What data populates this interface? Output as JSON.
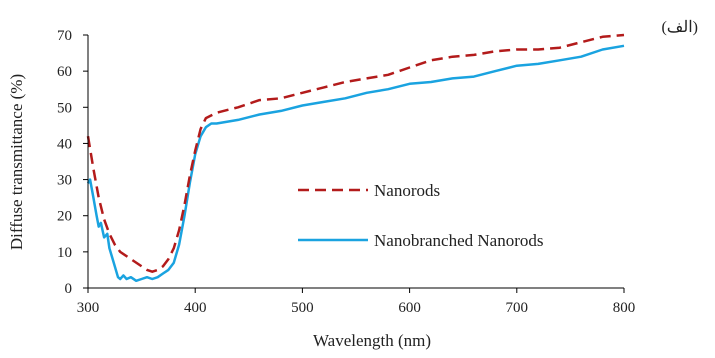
{
  "panel_label": "(الف)",
  "colors": {
    "nanorods": "#b31b1b",
    "nanobranched": "#1aa3e0",
    "axis": "#000000"
  },
  "chart_data": {
    "type": "line",
    "xlabel": "Wavelength (nm)",
    "ylabel": "Diffuse transmittance (%)",
    "xlim": [
      300,
      800
    ],
    "ylim": [
      0,
      70
    ],
    "xticks": [
      300,
      400,
      500,
      600,
      700,
      800
    ],
    "yticks": [
      0,
      10,
      20,
      30,
      40,
      50,
      60,
      70
    ],
    "grid": false,
    "legend_position": "center-right",
    "series": [
      {
        "name": "Nanorods",
        "style": "dashed",
        "x": [
          300,
          305,
          310,
          315,
          320,
          325,
          330,
          340,
          350,
          355,
          360,
          365,
          370,
          375,
          380,
          385,
          390,
          395,
          400,
          405,
          410,
          420,
          440,
          460,
          480,
          500,
          520,
          540,
          560,
          580,
          600,
          620,
          640,
          660,
          680,
          700,
          720,
          740,
          760,
          780,
          800
        ],
        "y": [
          42,
          33,
          25,
          19,
          15,
          12,
          10,
          8,
          6,
          5,
          4.5,
          5,
          6,
          8,
          11,
          16,
          23,
          31,
          38,
          44,
          47,
          48.5,
          50,
          52,
          52.5,
          54,
          55.5,
          57,
          58,
          59,
          61,
          63,
          64,
          64.5,
          65.5,
          66,
          66,
          66.5,
          68,
          69.5,
          70
        ]
      },
      {
        "name": "Nanobranched Nanorods",
        "style": "solid",
        "x": [
          300,
          302,
          305,
          308,
          310,
          312,
          315,
          318,
          320,
          322,
          325,
          328,
          330,
          333,
          336,
          340,
          345,
          350,
          355,
          360,
          365,
          370,
          375,
          380,
          385,
          390,
          395,
          400,
          405,
          410,
          415,
          420,
          440,
          460,
          480,
          500,
          520,
          540,
          560,
          580,
          600,
          620,
          640,
          660,
          680,
          700,
          720,
          740,
          760,
          780,
          800
        ],
        "y": [
          29,
          30,
          25,
          20,
          17,
          18,
          14,
          15,
          11,
          9,
          6,
          3,
          2.5,
          3.5,
          2.5,
          3,
          2,
          2.5,
          3,
          2.5,
          3,
          4,
          5,
          7,
          12,
          20,
          29,
          37,
          42,
          44.5,
          45.5,
          45.5,
          46.5,
          48,
          49,
          50.5,
          51.5,
          52.5,
          54,
          55,
          56.5,
          57,
          58,
          58.5,
          60,
          61.5,
          62,
          63,
          64,
          66,
          67
        ]
      }
    ]
  }
}
